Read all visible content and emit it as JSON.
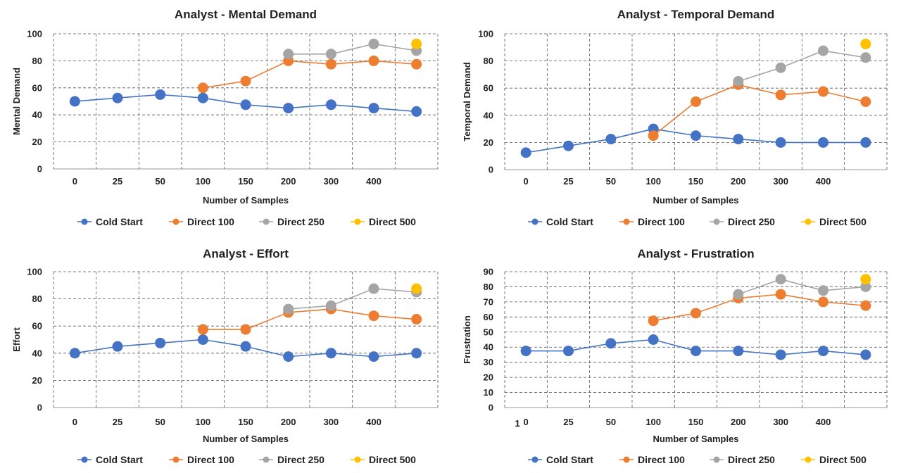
{
  "chart_data": [
    {
      "type": "line",
      "title": "Analyst - Mental Demand",
      "xlabel": "Number of Samples",
      "ylabel": "Mental Demand",
      "categories": [
        "0",
        "25",
        "50",
        "100",
        "150",
        "200",
        "300",
        "400",
        ""
      ],
      "ylim": [
        0,
        100
      ],
      "ystep": 20,
      "grid": true,
      "legend": "bottom",
      "series": [
        {
          "name": "Cold Start",
          "color": "#4472C4",
          "values": [
            50,
            52.5,
            55,
            52.5,
            47.5,
            45,
            47.5,
            45,
            42.5
          ]
        },
        {
          "name": "Direct 100",
          "color": "#ED7D31",
          "values": [
            null,
            null,
            null,
            60,
            65,
            80,
            77.5,
            80,
            77.5
          ]
        },
        {
          "name": "Direct 250",
          "color": "#A5A5A5",
          "values": [
            null,
            null,
            null,
            null,
            null,
            85,
            85,
            92.5,
            87.5
          ]
        },
        {
          "name": "Direct 500",
          "color": "#FFC000",
          "values": [
            null,
            null,
            null,
            null,
            null,
            null,
            null,
            null,
            92.5
          ]
        }
      ]
    },
    {
      "type": "line",
      "title": "Analyst  -  Temporal Demand",
      "xlabel": "Number of Samples",
      "ylabel": "Temporal Demand",
      "categories": [
        "0",
        "25",
        "50",
        "100",
        "150",
        "200",
        "300",
        "400",
        ""
      ],
      "ylim": [
        0,
        100
      ],
      "ystep": 20,
      "grid": true,
      "legend": "bottom",
      "series": [
        {
          "name": "Cold Start",
          "color": "#4472C4",
          "values": [
            12.5,
            17.5,
            22.5,
            30,
            25,
            22.5,
            20,
            20,
            20
          ]
        },
        {
          "name": "Direct 100",
          "color": "#ED7D31",
          "values": [
            null,
            null,
            null,
            25,
            50,
            62.5,
            55,
            57.5,
            50
          ]
        },
        {
          "name": "Direct 250",
          "color": "#A5A5A5",
          "values": [
            null,
            null,
            null,
            null,
            null,
            65,
            75,
            87.5,
            82.5
          ]
        },
        {
          "name": "Direct 500",
          "color": "#FFC000",
          "values": [
            null,
            null,
            null,
            null,
            null,
            null,
            null,
            null,
            92.5
          ]
        }
      ]
    },
    {
      "type": "line",
      "title": "Analyst  - Effort",
      "xlabel": "Number of Samples",
      "ylabel": "Effort",
      "categories": [
        "0",
        "25",
        "50",
        "100",
        "150",
        "200",
        "300",
        "400",
        ""
      ],
      "ylim": [
        0,
        100
      ],
      "ystep": 20,
      "grid": true,
      "legend": "bottom",
      "series": [
        {
          "name": "Cold Start",
          "color": "#4472C4",
          "values": [
            40,
            45,
            47.5,
            50,
            45,
            37.5,
            40,
            37.5,
            40
          ]
        },
        {
          "name": "Direct 100",
          "color": "#ED7D31",
          "values": [
            null,
            null,
            null,
            57.5,
            57.5,
            70,
            72.5,
            67.5,
            65
          ]
        },
        {
          "name": "Direct 250",
          "color": "#A5A5A5",
          "values": [
            null,
            null,
            null,
            null,
            null,
            72.5,
            75,
            87.5,
            85
          ]
        },
        {
          "name": "Direct 500",
          "color": "#FFC000",
          "values": [
            null,
            null,
            null,
            null,
            null,
            null,
            null,
            null,
            87.5
          ]
        }
      ]
    },
    {
      "type": "line",
      "title": "Analyst  - Frustration",
      "xlabel": "Number of Samples",
      "ylabel": "Frustration",
      "categories": [
        "0",
        "25",
        "50",
        "100",
        "150",
        "200",
        "300",
        "400",
        ""
      ],
      "extra_label": "1",
      "ylim": [
        0,
        90
      ],
      "ystep": 10,
      "grid": true,
      "legend": "bottom",
      "series": [
        {
          "name": "Cold Start",
          "color": "#4472C4",
          "values": [
            37.5,
            37.5,
            42.5,
            45,
            37.5,
            37.5,
            35,
            37.5,
            35
          ]
        },
        {
          "name": "Direct 100",
          "color": "#ED7D31",
          "values": [
            null,
            null,
            null,
            57.5,
            62.5,
            72.5,
            75,
            70,
            67.5
          ]
        },
        {
          "name": "Direct 250",
          "color": "#A5A5A5",
          "values": [
            null,
            null,
            null,
            null,
            null,
            75,
            85,
            77.5,
            80
          ]
        },
        {
          "name": "Direct 500",
          "color": "#FFC000",
          "values": [
            null,
            null,
            null,
            null,
            null,
            null,
            null,
            null,
            85
          ]
        }
      ]
    }
  ]
}
